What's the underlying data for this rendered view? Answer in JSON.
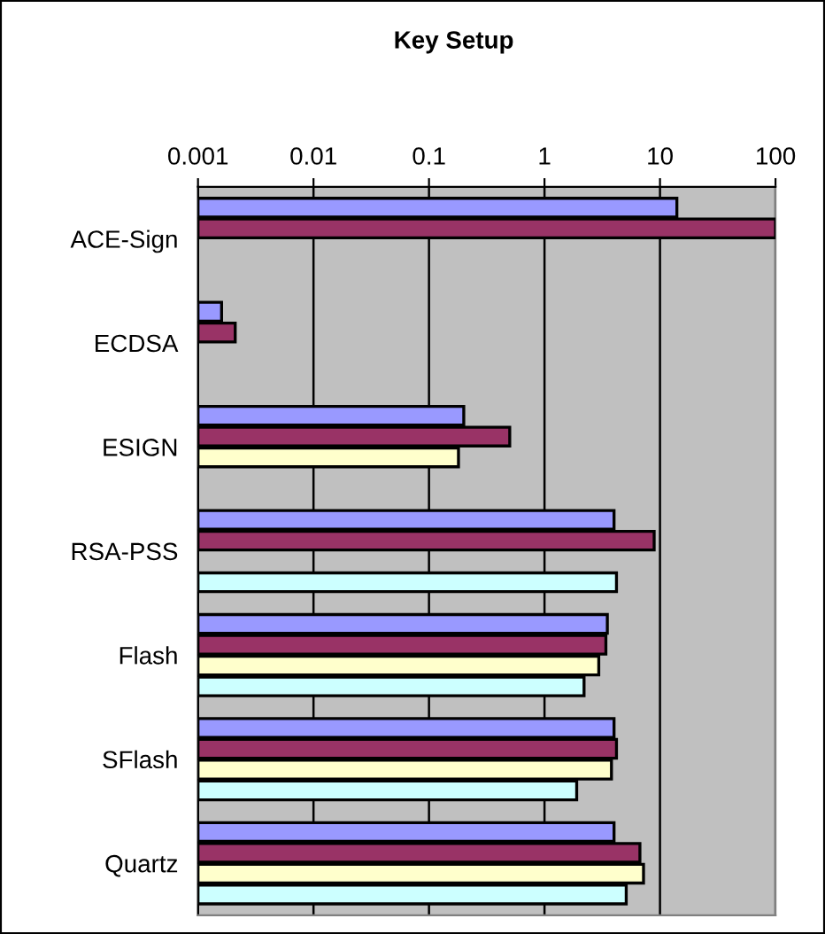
{
  "chart_data": {
    "type": "bar",
    "orientation": "horizontal",
    "title": "Key Setup",
    "log": "x",
    "grid": "x",
    "categories": [
      "ACE-Sign",
      "ECDSA",
      "ESIGN",
      "RSA-PSS",
      "Flash",
      "SFlash",
      "Quartz"
    ],
    "xlim": [
      0.001,
      100
    ],
    "xticks": [
      0.001,
      0.01,
      0.1,
      1,
      10,
      100
    ],
    "series": [
      {
        "color": "#9999ff",
        "values": [
          14,
          0.0016,
          0.2,
          4.0,
          3.5,
          4.0,
          4.0
        ]
      },
      {
        "color": "#993366",
        "values": [
          100,
          0.0021,
          0.5,
          8.9,
          3.4,
          4.2,
          6.7
        ]
      },
      {
        "color": "#ffffcc",
        "values": [
          null,
          null,
          0.18,
          null,
          2.95,
          3.8,
          7.2
        ]
      },
      {
        "color": "#ccffff",
        "values": [
          null,
          null,
          null,
          4.2,
          2.2,
          1.9,
          5.1
        ]
      }
    ]
  }
}
